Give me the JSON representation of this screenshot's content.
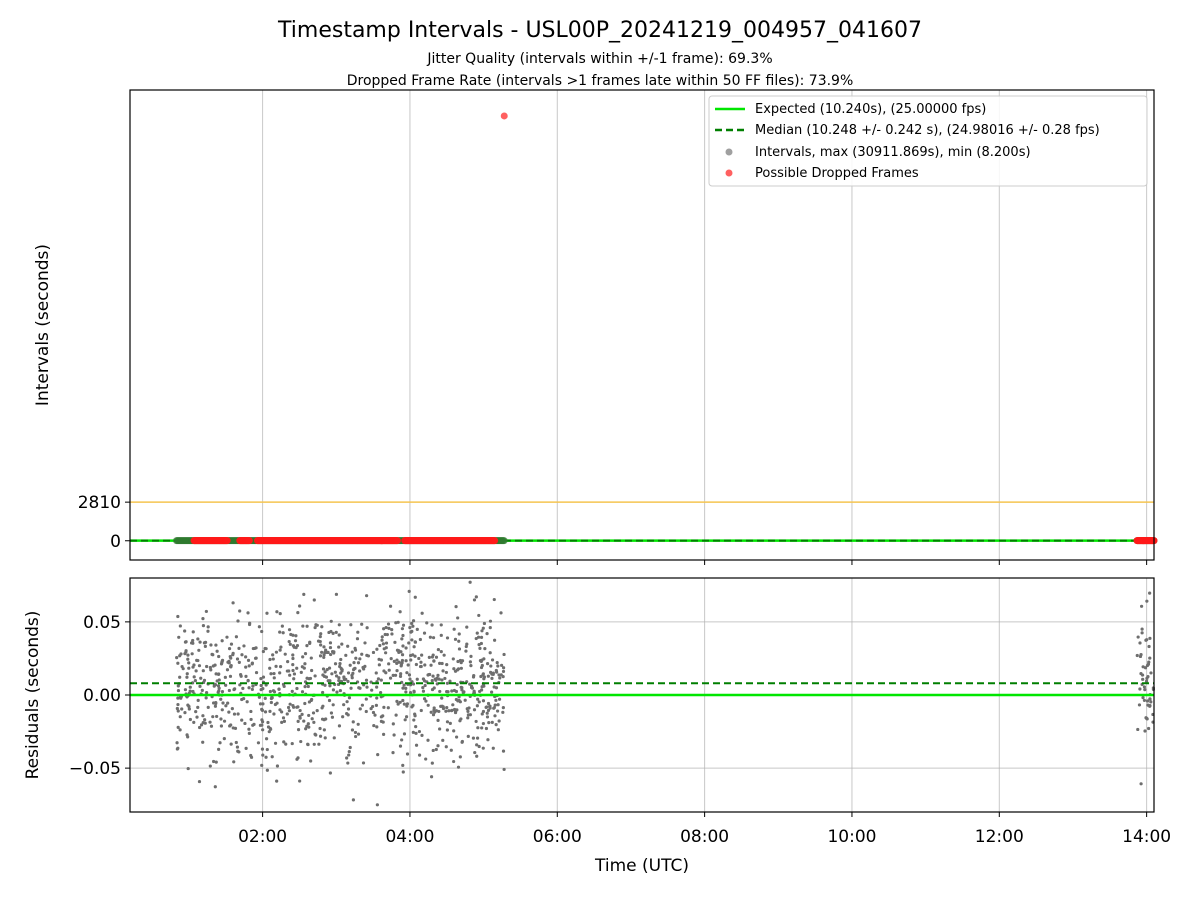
{
  "chart_data": [
    {
      "type": "scatter",
      "title": "Timestamp Intervals - USL00P_20241219_004957_041607",
      "subtitle_lines": [
        "Jitter Quality (intervals within +/-1 frame): 69.3%",
        "Dropped Frame Rate (intervals >1 frames late within 50 FF files): 73.9%"
      ],
      "ylabel": "Intervals (seconds)",
      "yticks": [
        0,
        2810
      ],
      "ytick_labels": [
        "0",
        "2810"
      ],
      "ylim": [
        -1400,
        32800
      ],
      "xlim_hours": [
        0.2,
        14.1
      ],
      "grid": true,
      "threshold_line": {
        "value": 2810,
        "color": "#f5c451"
      },
      "legend_position": "top-right",
      "legend": [
        {
          "label": "Expected (10.240s), (25.00000 fps)",
          "kind": "solid-line",
          "color": "#00e600"
        },
        {
          "label": "Median (10.248 +/- 0.242 s), (24.98016 +/- 0.28 fps)",
          "kind": "dashed-line",
          "color": "#007f00"
        },
        {
          "label": "Intervals, max (30911.869s), min (8.200s)",
          "kind": "marker",
          "color": "#a0a0a0"
        },
        {
          "label": "Possible Dropped Frames",
          "kind": "marker",
          "color": "#ff6060"
        }
      ],
      "expected_interval": 10.24,
      "median_interval": 10.248,
      "max_interval_point": {
        "x_hours": 5.28,
        "y": 30911.869
      },
      "interval_time_spans_hours": [
        [
          0.83,
          5.28
        ],
        [
          13.87,
          14.1
        ]
      ],
      "dropped_frame_spans_hours": [
        [
          1.07,
          1.52
        ],
        [
          1.69,
          1.82
        ],
        [
          1.93,
          3.83
        ],
        [
          3.93,
          5.15
        ],
        [
          13.87,
          14.1
        ]
      ]
    },
    {
      "type": "scatter",
      "ylabel": "Residuals (seconds)",
      "xlabel": "Time (UTC)",
      "yticks": [
        -0.05,
        0.0,
        0.05
      ],
      "ytick_labels": [
        "−0.05",
        "0.00",
        "0.05"
      ],
      "ylim": [
        -0.08,
        0.08
      ],
      "xticks_hours": [
        2,
        4,
        6,
        8,
        10,
        12,
        14
      ],
      "xtick_labels": [
        "02:00",
        "04:00",
        "06:00",
        "08:00",
        "10:00",
        "12:00",
        "14:00"
      ],
      "xlim_hours": [
        0.2,
        14.1
      ],
      "grid": true,
      "expected_residual": 0.0,
      "median_residual": 0.008,
      "residual_point_color": "#6e6e6e",
      "residual_time_spans_hours": [
        [
          0.83,
          5.28
        ],
        [
          13.87,
          14.1
        ]
      ],
      "residual_spread": 0.026
    }
  ]
}
